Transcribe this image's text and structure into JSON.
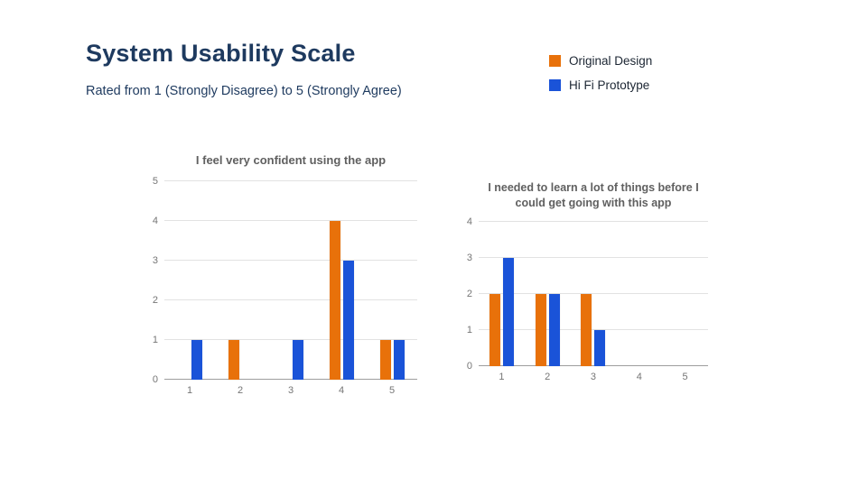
{
  "slide": {
    "title": "System Usability Scale",
    "subtitle": "Rated from 1 (Strongly Disagree) to 5 (Strongly Agree)"
  },
  "colors": {
    "original_design": "#E8710A",
    "hi_fi_prototype": "#1A53D8",
    "heading": "#1e3a5f"
  },
  "legend": {
    "items": [
      {
        "label": "Original Design",
        "color": "#E8710A"
      },
      {
        "label": "Hi Fi Prototype",
        "color": "#1A53D8"
      }
    ]
  },
  "chart_data": [
    {
      "type": "bar",
      "title": "I feel very confident using the app",
      "categories": [
        "1",
        "2",
        "3",
        "4",
        "5"
      ],
      "series": [
        {
          "name": "Original Design",
          "color": "#E8710A",
          "values": [
            0,
            1,
            0,
            4,
            1
          ]
        },
        {
          "name": "Hi Fi Prototype",
          "color": "#1A53D8",
          "values": [
            1,
            0,
            1,
            3,
            1
          ]
        }
      ],
      "xlabel": "",
      "ylabel": "",
      "ylim": [
        0,
        5
      ],
      "yticks": [
        0,
        1,
        2,
        3,
        4,
        5
      ],
      "ytick_step": 1,
      "grid": true,
      "legend_position": "top-right-of-slide"
    },
    {
      "type": "bar",
      "title": "I needed to learn a lot of things before I could get going with this app",
      "categories": [
        "1",
        "2",
        "3",
        "4",
        "5"
      ],
      "series": [
        {
          "name": "Original Design",
          "color": "#E8710A",
          "values": [
            2,
            2,
            2,
            0,
            0
          ]
        },
        {
          "name": "Hi Fi Prototype",
          "color": "#1A53D8",
          "values": [
            3,
            2,
            1,
            0,
            0
          ]
        }
      ],
      "xlabel": "",
      "ylabel": "",
      "ylim": [
        0,
        4
      ],
      "yticks": [
        0,
        1,
        2,
        3,
        4
      ],
      "ytick_step": 1,
      "grid": true,
      "legend_position": "top-right-of-slide"
    }
  ]
}
